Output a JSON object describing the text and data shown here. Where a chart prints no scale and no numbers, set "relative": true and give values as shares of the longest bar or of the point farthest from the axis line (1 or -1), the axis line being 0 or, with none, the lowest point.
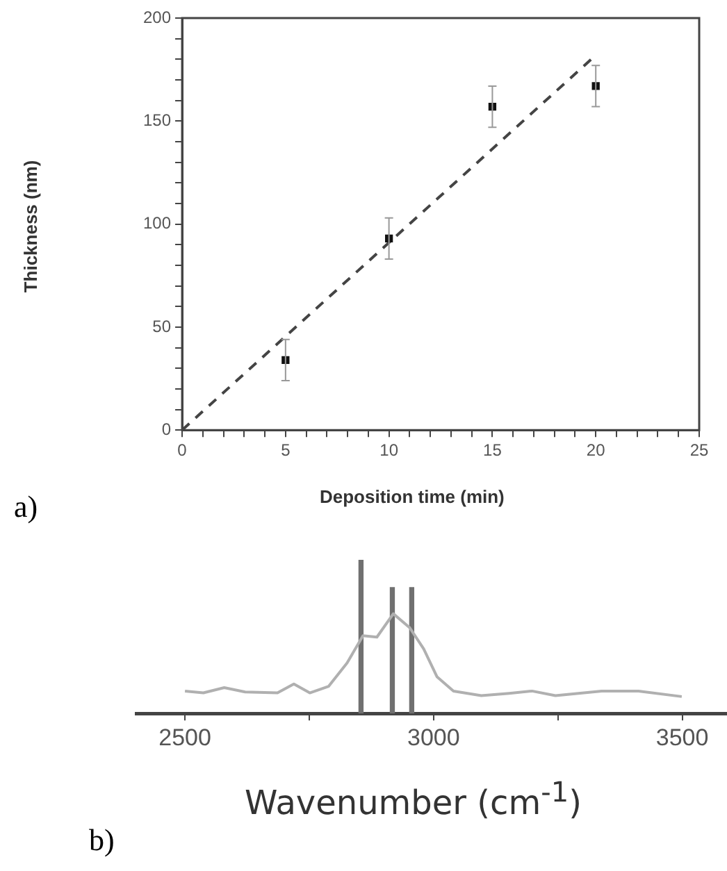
{
  "chart_data": [
    {
      "type": "scatter",
      "xlabel": "Deposition time (min)",
      "ylabel": "Thickness (nm)",
      "annotations": [
        "a)"
      ],
      "marker": "square",
      "xlim": [
        0,
        25
      ],
      "ylim": [
        0,
        200
      ],
      "xticks": [
        0,
        {
          "value": 1,
          "label": null
        },
        {
          "value": 2,
          "label": null
        },
        {
          "value": 3,
          "label": null
        },
        {
          "value": 4,
          "label": null
        },
        5,
        {
          "value": 6,
          "label": null
        },
        {
          "value": 7,
          "label": null
        },
        {
          "value": 8,
          "label": null
        },
        {
          "value": 9,
          "label": null
        },
        10,
        {
          "value": 11,
          "label": null
        },
        {
          "value": 12,
          "label": null
        },
        {
          "value": 13,
          "label": null
        },
        {
          "value": 14,
          "label": null
        },
        15,
        {
          "value": 16,
          "label": null
        },
        {
          "value": 17,
          "label": null
        },
        {
          "value": 18,
          "label": null
        },
        {
          "value": 19,
          "label": null
        },
        20,
        {
          "value": 21,
          "label": null
        },
        {
          "value": 22,
          "label": null
        },
        {
          "value": 23,
          "label": null
        },
        {
          "value": 24,
          "label": null
        },
        25
      ],
      "yticks": [
        0,
        {
          "value": 10,
          "label": null
        },
        {
          "value": 20,
          "label": null
        },
        {
          "value": 30,
          "label": null
        },
        {
          "value": 40,
          "label": null
        },
        50,
        {
          "value": 60,
          "label": null
        },
        {
          "value": 70,
          "label": null
        },
        {
          "value": 80,
          "label": null
        },
        {
          "value": 90,
          "label": null
        },
        100,
        {
          "value": 110,
          "label": null
        },
        {
          "value": 120,
          "label": null
        },
        {
          "value": 130,
          "label": null
        },
        {
          "value": 140,
          "label": null
        },
        150,
        {
          "value": 160,
          "label": null
        },
        {
          "value": 170,
          "label": null
        },
        {
          "value": 180,
          "label": null
        },
        {
          "value": 190,
          "label": null
        },
        200
      ],
      "series": [
        {
          "color": "#111111",
          "x": [
            5,
            10,
            15,
            20
          ],
          "values": [
            34,
            93,
            157,
            167
          ],
          "errors": [
            10,
            10,
            10,
            10
          ]
        },
        {
          "type": "line",
          "color": "#444444",
          "line_style": "dashed",
          "marker": "none",
          "x": [
            0,
            20
          ],
          "values": [
            0,
            182
          ]
        }
      ]
    },
    {
      "type": "line",
      "relative": true,
      "xlabel": "Wavenumber (cm$^{-1}$)",
      "annotations": [
        "b)"
      ],
      "marker": "none",
      "tick_labels": "x",
      "xlim": [
        2402,
        3590
      ],
      "xticks": [
        2500,
        {
          "value": 2750,
          "label": null
        },
        3000,
        {
          "value": 3250,
          "label": null
        },
        3500
      ],
      "series": [
        {
          "color": "#b0b0b0",
          "x": [
            2500,
            2537,
            2579,
            2621,
            2686,
            2719,
            2751,
            2789,
            2826,
            2858,
            2886,
            2919,
            2952,
            2980,
            3007,
            3040,
            3096,
            3152,
            3198,
            3245,
            3338,
            3412,
            3499
          ],
          "values": [
            0.146,
            0.134,
            0.168,
            0.14,
            0.134,
            0.192,
            0.134,
            0.177,
            0.329,
            0.506,
            0.497,
            0.649,
            0.558,
            0.421,
            0.238,
            0.146,
            0.116,
            0.131,
            0.146,
            0.116,
            0.146,
            0.146,
            0.11
          ]
        },
        {
          "type": "bar",
          "color": "#707070",
          "x": [
            2854,
            2917,
            2956
          ],
          "values": [
            1,
            0.82,
            0.82
          ]
        }
      ]
    }
  ]
}
